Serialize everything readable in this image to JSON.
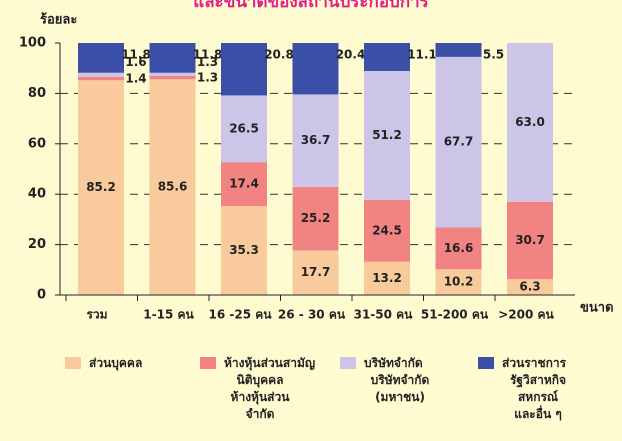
{
  "chart_data": {
    "type": "bar",
    "stacked": true,
    "title": "และขนาดของสถานประกอบการ",
    "y_label": "ร้อยละ",
    "x_label": "ขนาด",
    "categories": [
      "รวม",
      "1-15 คน",
      "16 -25 คน",
      "26 - 30 คน",
      "31-50 คน",
      "51-200 คน",
      ">200 คน"
    ],
    "ylim": [
      0,
      100
    ],
    "yticks": [
      0,
      20,
      40,
      60,
      80,
      100
    ],
    "grid": true,
    "series": [
      {
        "name": "ส่วนบุคคล",
        "color": "#f9cb9c",
        "values": [
          85.2,
          85.6,
          35.3,
          17.7,
          13.2,
          10.2,
          6.3
        ]
      },
      {
        "name": "ห้างหุ้นส่วนสามัญ\nนิติบุคคล\nห้างหุ้นส่วน\nจำกัด",
        "color": "#f28383",
        "values": [
          1.4,
          1.3,
          17.4,
          25.2,
          24.5,
          16.6,
          30.7
        ]
      },
      {
        "name": "บริษัทจำกัด\nบริษัทจำกัด\n(มหาชน)",
        "color": "#cdc5e8",
        "values": [
          1.6,
          1.3,
          26.5,
          36.7,
          51.2,
          67.7,
          63.0
        ],
        "value_labels": [
          "1.6",
          "1.3",
          "26.5",
          "36.7",
          "51.2",
          "67.7",
          "63.0"
        ]
      },
      {
        "name": "ส่วนราชการ\nรัฐวิสาหกิจ\nสหกรณ์\nและอื่น ๆ",
        "color": "#3b4fa8",
        "values": [
          11.8,
          11.8,
          20.8,
          20.4,
          11.1,
          5.5,
          0
        ],
        "value_labels": [
          "11.8",
          "11.8",
          "20.8",
          "20.4",
          "11.1",
          "5.5",
          null
        ]
      }
    ]
  }
}
